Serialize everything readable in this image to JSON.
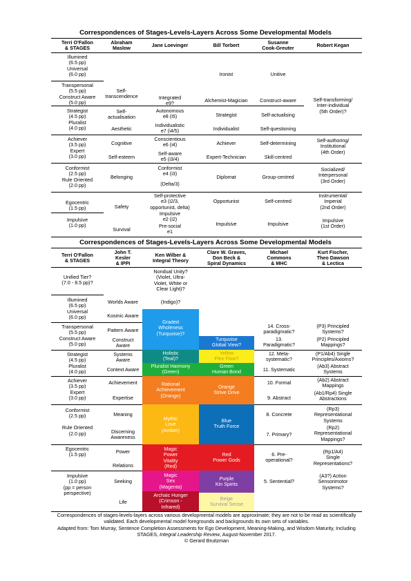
{
  "table1": {
    "title": "Correspondences of Stages-Levels-Layers Across Some Developmental Models",
    "headers": [
      "Terri O'Fallon\n& STAGES",
      "Abraham\nMaslow",
      "Jane Loevinger",
      "Bill Torbert",
      "Susanne\nCook-Greuter",
      "Robert Kegan"
    ],
    "stages": [
      "Illumined\n(6.5 pp)\nUniversal\n(6.0 pp)",
      "Transpersonal\n(5.5 pp)\nConstruct Aware\n(5.0 pp)",
      "Strategist\n(4.5 pp)\nPluralist\n(4.0 pp)",
      "Achiever\n(3.5 pp)\nExpert\n(3.0 pp)",
      "Conformist\n(2.5 pp)\nRule Oriented\n(2.0 pp)",
      "Egocentric\n(1.5 pp)",
      "Impulsive\n(1.0 pp)"
    ],
    "maslow": [
      "Self-\ntranscendence",
      "Self-\nactualisation",
      "Aesthetic",
      "Cognitive",
      "Self-esteem",
      "Belonging",
      "Safety",
      "Survival"
    ],
    "loevinger": [
      "Integrated\ne9?",
      "Autonomous\ne8 (i5)",
      "Individualistic\ne7 (i4/5)",
      "Conscientious\ne6 (i4)",
      "Self-aware\ne5 (i3/4)",
      "Conformist\ne4 (i3)",
      "(Delta/3)",
      "Self-protective\ne3 (i2/3,\nopportunist, delta)",
      "Impulsive\ne2 (i2)",
      "Pre-social\ne1"
    ],
    "torbert": [
      "Ironist",
      "Alchemist-Magician",
      "Strategist",
      "Individualist",
      "Achiever",
      "Expert-Technician",
      "Diplomat",
      "Opportunist",
      "Impulsive"
    ],
    "cook": [
      "Unitive",
      "Construct-aware",
      "Self-actualising",
      "Self-questioning",
      "Self-determining",
      "Skill-centred",
      "Group-centred",
      "Self-centred",
      "Impulsive"
    ],
    "kegan": [
      "Self-transforming/\nInter-individual\n(5th Order)?",
      "Self-authoring/\nInstitutional\n(4th Order)",
      "Socialized/\nInterpersonal\n(3rd Order)",
      "Instrumental/\nImperial\n(2nd Order)",
      "Impulsive\n(1st Order)"
    ]
  },
  "table2": {
    "title": "Correspondences of Stages-Levels-Layers Across Some Developmental Models",
    "headers": [
      "Terri O'Fallon\n& STAGES",
      "John T.\nKesler\n& IPPI",
      "Ken Wilber &\nIntegral Theory",
      "Clare W. Graves,\nDon Beck &\nSpiral Dynamics",
      "Michael\nCommons\n& MHC",
      "Kurt Fischer,\nTheo Dawson\n& Lectica"
    ],
    "stages": [
      "Unified Tier?\n(7.0 - 8.5 pp)?",
      "Illumined\n(6.5 pp)\nUniversal\n(6.0 pp)",
      "Transpersonal\n(5.5 pp)\nConstruct Aware\n(5.0 pp)",
      "Strategist\n(4.5 pp)\nPluralist\n(4.0 pp)",
      "Achiever\n(3.5 pp)\nExpert\n(3.0 pp)",
      "Conformist\n(2.5 pp)\n\nRule Oriented\n(2.0 pp)",
      "Egocentric\n(1.5 pp)",
      "Impulsive\n(1.0 pp)\n(pp = person\nperspective)"
    ],
    "kesler": [
      "Worlds Aware",
      "Kosmic Aware",
      "Pattern Aware",
      "Construct\nAware",
      "Systems\nAware",
      "Context Aware",
      "Achievement",
      "Expertise",
      "Meaning",
      "Discerning\nAwareness",
      "Power",
      "Relations",
      "Seeking",
      "Life"
    ],
    "wilber": {
      "nondual": "Nondual Unity?\n(Violet, Ultra-\nViolet, White or\nClear Light)?",
      "indigo": "(Indigo)?",
      "turquoise": "Graded\nWholeness\n(Turquoise)?",
      "teal": "Holistic\n(Teal)?",
      "amber_top": "Pluralist Harmony\n(Green)",
      "orange": "Rational\nAchievement\n(Orange)",
      "amber": "Mythic\nLove\n(Amber)",
      "red": "Magic\nPower\nVitality\n(Red)",
      "magenta": "Magic\nSex\n(Magenta)",
      "infrared": "Archaic Hunger\n(Crimson -\nInfrared)"
    },
    "graves": {
      "turquoise": "Turquoise\nGlobal View?",
      "yellow": "Yellow\nFlex Flow?",
      "green": "Green\nHuman Bond",
      "orange": "Orange\nStrive Drive",
      "blue": "Blue\nTruth Force",
      "red": "Red\nPower Gods",
      "purple": "Purple\nKin Spirits",
      "beige": "Beige\nSurvival Sense"
    },
    "commons": [
      "14. Cross-\nparadigmatic?",
      "13.\nParadigmatic?",
      "12. Meta-\nsystematic?",
      "11. Systematic",
      "10. Formal",
      "9. Abstract",
      "8. Concrete",
      "7. Primary?",
      "6. Pre-\noperational?",
      "5. Sentential?"
    ],
    "fischer": [
      "(P3) Principled\nSystems?",
      "(P2) Principled\nMappings?",
      "(P1/Ab4) Single\nPrinciples/Axioms?",
      "(Ab3) Abstract\nSystems",
      "(Ab2) Abstract\nMappings",
      "(Ab1/Rp4) Single\nAbstractions",
      "(Rp3)\nRepresentational\nSystems",
      "(Rp2)\nRepresentational\nMappings?",
      "(Rp1/A4)\nSingle\nRepresentations?",
      "(A3?) Action\nSensorimotor\nSystems?"
    ]
  },
  "footer": {
    "line1": "Correspondences of stages-levels-layers across various developmental models are approximate; they are not to be read as scientifically validated. Each developmental model foregrounds and backgrounds its own sets of variables.",
    "line2a": "Adapted from: Tom Murray, Sentence Completion Assessments for Ego Development, Meaning-Making, and Wisdom Maturity, Including STAGES,",
    "line2b": "Integral Leadership Review",
    "line2c": ", August-November 2017.",
    "line3": "© Gerard Bruitzman"
  },
  "colors": {
    "sky": "#1e9bea",
    "dodger": "#1a78d3",
    "teal": "#0f8a86",
    "yellow": "#f9ed1b",
    "green": "#1eae3b",
    "orange": "#f47d20",
    "amber": "#fcb813",
    "blue": "#0d6fb8",
    "red": "#e41b22",
    "magenta": "#e5168a",
    "purple": "#7f3ea3",
    "crimson": "#b8102b",
    "beige": "#fdf7a6"
  }
}
